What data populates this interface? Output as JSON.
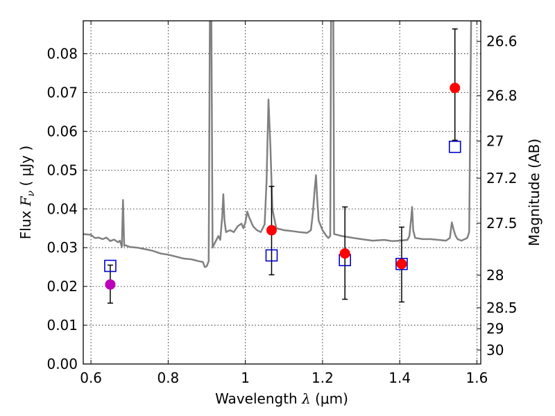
{
  "chart_data": {
    "type": "scatter",
    "xlabel": "Wavelength  λ (μm)",
    "ylabel": "Flux  F_ν  ( μJy )",
    "ylabel_right": "Magnitude (AB)",
    "xlim": [
      0.58,
      1.61
    ],
    "ylim": [
      0.0,
      0.0885
    ],
    "grid": true,
    "x_ticks": [
      0.6,
      0.8,
      1.0,
      1.2,
      1.4,
      1.6
    ],
    "x_tick_labels": [
      "0.6",
      "0.8",
      "1",
      "1.2",
      "1.4",
      "1.6"
    ],
    "y_ticks": [
      0.0,
      0.01,
      0.02,
      0.03,
      0.04,
      0.05,
      0.06,
      0.07,
      0.08
    ],
    "y_tick_labels": [
      "0.00",
      "0.01",
      "0.02",
      "0.03",
      "0.04",
      "0.05",
      "0.06",
      "0.07",
      "0.08"
    ],
    "right_ticks": [
      {
        "label": "26.6",
        "flux": 0.0832
      },
      {
        "label": "26.8",
        "flux": 0.0692
      },
      {
        "label": "27",
        "flux": 0.0575
      },
      {
        "label": "27.2",
        "flux": 0.0479
      },
      {
        "label": "27.5",
        "flux": 0.0363
      },
      {
        "label": "28",
        "flux": 0.0229
      },
      {
        "label": "28.5",
        "flux": 0.0145
      },
      {
        "label": "29",
        "flux": 0.0091
      },
      {
        "label": "30",
        "flux": 0.0036
      }
    ],
    "colors": {
      "model": "#808080",
      "observed": "#ff0000",
      "observed_first": "#bb00bb",
      "model_photometry": "#0000cc",
      "errorbar": "#000000"
    },
    "series": [
      {
        "type": "line",
        "points": [
          [
            0.58,
            0.0335
          ],
          [
            0.6,
            0.0333
          ],
          [
            0.61,
            0.0325
          ],
          [
            0.62,
            0.0326
          ],
          [
            0.63,
            0.0322
          ],
          [
            0.64,
            0.0326
          ],
          [
            0.65,
            0.0317
          ],
          [
            0.66,
            0.0321
          ],
          [
            0.67,
            0.0314
          ],
          [
            0.675,
            0.0318
          ],
          [
            0.68,
            0.0302
          ],
          [
            0.683,
            0.0423
          ],
          [
            0.686,
            0.0305
          ],
          [
            0.69,
            0.0306
          ],
          [
            0.7,
            0.0302
          ],
          [
            0.72,
            0.03
          ],
          [
            0.74,
            0.0296
          ],
          [
            0.76,
            0.0292
          ],
          [
            0.78,
            0.0285
          ],
          [
            0.8,
            0.0282
          ],
          [
            0.82,
            0.0277
          ],
          [
            0.84,
            0.0272
          ],
          [
            0.86,
            0.027
          ],
          [
            0.88,
            0.0265
          ],
          [
            0.89,
            0.0263
          ],
          [
            0.895,
            0.025
          ],
          [
            0.9,
            0.0252
          ],
          [
            0.905,
            0.0265
          ],
          [
            0.908,
            0.0885
          ],
          [
            0.912,
            0.0885
          ],
          [
            0.915,
            0.03
          ],
          [
            0.92,
            0.031
          ],
          [
            0.93,
            0.033
          ],
          [
            0.935,
            0.032
          ],
          [
            0.94,
            0.038
          ],
          [
            0.943,
            0.0438
          ],
          [
            0.946,
            0.037
          ],
          [
            0.95,
            0.034
          ],
          [
            0.96,
            0.0345
          ],
          [
            0.97,
            0.034
          ],
          [
            0.98,
            0.0355
          ],
          [
            0.99,
            0.0362
          ],
          [
            0.995,
            0.035
          ],
          [
            1.0,
            0.0365
          ],
          [
            1.005,
            0.0393
          ],
          [
            1.01,
            0.0378
          ],
          [
            1.02,
            0.0355
          ],
          [
            1.03,
            0.0345
          ],
          [
            1.04,
            0.034
          ],
          [
            1.05,
            0.036
          ],
          [
            1.055,
            0.047
          ],
          [
            1.06,
            0.0682
          ],
          [
            1.065,
            0.056
          ],
          [
            1.07,
            0.04
          ],
          [
            1.08,
            0.035
          ],
          [
            1.1,
            0.0345
          ],
          [
            1.12,
            0.0343
          ],
          [
            1.14,
            0.034
          ],
          [
            1.16,
            0.0338
          ],
          [
            1.17,
            0.0345
          ],
          [
            1.175,
            0.039
          ],
          [
            1.18,
            0.0455
          ],
          [
            1.183,
            0.0487
          ],
          [
            1.186,
            0.043
          ],
          [
            1.19,
            0.037
          ],
          [
            1.2,
            0.0345
          ],
          [
            1.21,
            0.033
          ],
          [
            1.215,
            0.0325
          ],
          [
            1.22,
            0.033
          ],
          [
            1.222,
            0.0885
          ],
          [
            1.228,
            0.0885
          ],
          [
            1.23,
            0.0335
          ],
          [
            1.25,
            0.033
          ],
          [
            1.28,
            0.0325
          ],
          [
            1.3,
            0.0322
          ],
          [
            1.33,
            0.0318
          ],
          [
            1.36,
            0.032
          ],
          [
            1.38,
            0.0317
          ],
          [
            1.4,
            0.0318
          ],
          [
            1.42,
            0.032
          ],
          [
            1.425,
            0.033
          ],
          [
            1.43,
            0.038
          ],
          [
            1.432,
            0.0405
          ],
          [
            1.435,
            0.0345
          ],
          [
            1.44,
            0.0325
          ],
          [
            1.46,
            0.0322
          ],
          [
            1.48,
            0.0322
          ],
          [
            1.5,
            0.032
          ],
          [
            1.52,
            0.0318
          ],
          [
            1.53,
            0.0325
          ],
          [
            1.535,
            0.0365
          ],
          [
            1.54,
            0.0345
          ],
          [
            1.545,
            0.033
          ],
          [
            1.55,
            0.0322
          ],
          [
            1.56,
            0.0318
          ],
          [
            1.575,
            0.0325
          ],
          [
            1.58,
            0.034
          ],
          [
            1.585,
            0.0885
          ],
          [
            1.61,
            0.0885
          ]
        ]
      },
      {
        "type": "errorbar",
        "points": [
          {
            "x": 0.65,
            "y": 0.0205,
            "yerr_low": 0.0048,
            "yerr_high": 0.005
          },
          {
            "x": 1.068,
            "y": 0.0345,
            "yerr_low": 0.0115,
            "yerr_high": 0.0113
          },
          {
            "x": 1.258,
            "y": 0.0285,
            "yerr_low": 0.0118,
            "yerr_high": 0.012
          },
          {
            "x": 1.405,
            "y": 0.0258,
            "yerr_low": 0.0098,
            "yerr_high": 0.0095
          },
          {
            "x": 1.543,
            "y": 0.0712,
            "yerr_low": 0.0135,
            "yerr_high": 0.0152
          }
        ]
      },
      {
        "type": "scatter",
        "marker": "square",
        "points": [
          {
            "x": 0.65,
            "y": 0.0253
          },
          {
            "x": 1.068,
            "y": 0.028
          },
          {
            "x": 1.258,
            "y": 0.0268
          },
          {
            "x": 1.405,
            "y": 0.0258
          },
          {
            "x": 1.543,
            "y": 0.056
          }
        ]
      }
    ]
  }
}
